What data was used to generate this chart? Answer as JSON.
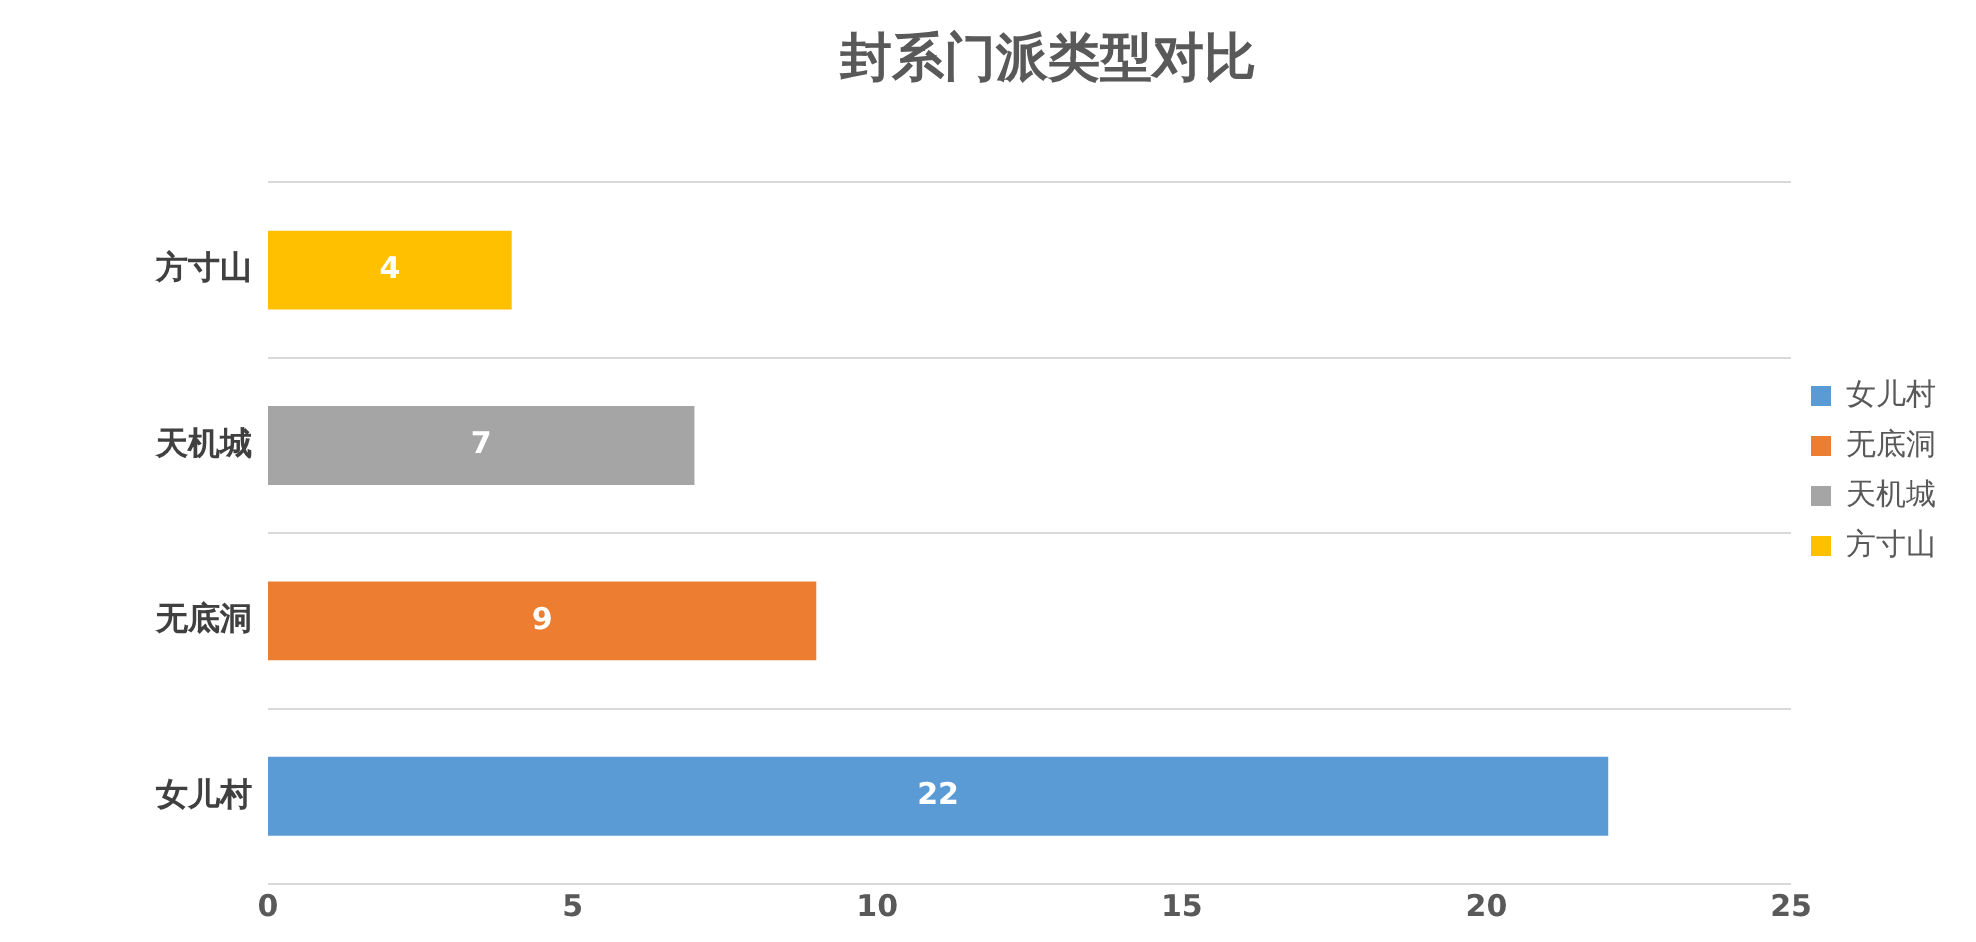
{
  "chart_data": {
    "type": "bar",
    "orientation": "horizontal",
    "title": "封系门派类型对比",
    "categories": [
      "方寸山",
      "天机城",
      "无底洞",
      "女儿村"
    ],
    "series": [
      {
        "name": "女儿村",
        "color": "#5b9bd5",
        "values": [
          null,
          null,
          null,
          22
        ]
      },
      {
        "name": "无底洞",
        "color": "#ed7d31",
        "values": [
          null,
          null,
          9,
          null
        ]
      },
      {
        "name": "天机城",
        "color": "#a5a5a5",
        "values": [
          null,
          7,
          null,
          null
        ]
      },
      {
        "name": "方寸山",
        "color": "#ffc000",
        "values": [
          4,
          null,
          null,
          null
        ]
      }
    ],
    "xlim": [
      0,
      25
    ],
    "xticks": [
      0,
      5,
      10,
      15,
      20,
      25
    ],
    "grid": "y",
    "legend": "right",
    "data_labels": true
  }
}
